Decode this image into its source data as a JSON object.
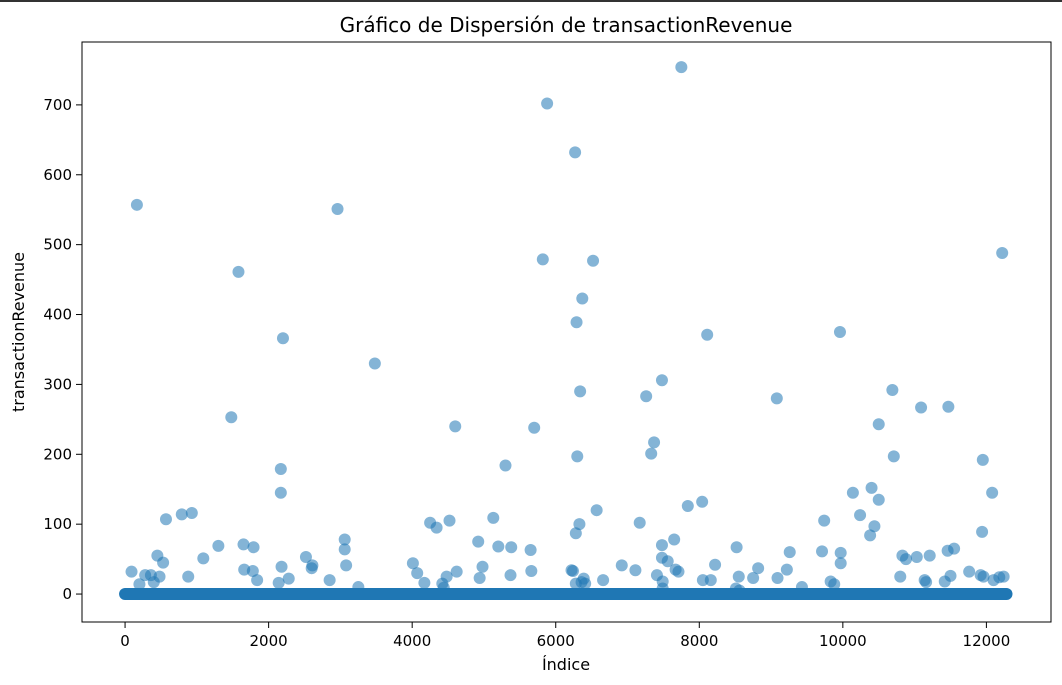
{
  "chart_data": {
    "type": "scatter",
    "title": "Gráfico de Dispersión de transactionRevenue",
    "xlabel": "Índice",
    "ylabel": "transactionRevenue",
    "xlim": [
      -600,
      12900
    ],
    "ylim": [
      -40,
      790
    ],
    "xticks": [
      0,
      2000,
      4000,
      6000,
      8000,
      10000,
      12000
    ],
    "xtick_labels": [
      "0",
      "2000",
      "4000",
      "6000",
      "8000",
      "10000",
      "12000"
    ],
    "yticks": [
      0,
      100,
      200,
      300,
      400,
      500,
      600,
      700
    ],
    "ytick_labels": [
      "0",
      "100",
      "200",
      "300",
      "400",
      "500",
      "600",
      "700"
    ],
    "grid": false,
    "legend": "none",
    "marker_color": "#1f77b4",
    "marker_alpha": 0.55,
    "baseline": {
      "x_start": 0,
      "x_end": 12280,
      "y": 0,
      "note_value": 0
    },
    "points": [
      {
        "x": 90,
        "y": 32
      },
      {
        "x": 165,
        "y": 557
      },
      {
        "x": 200,
        "y": 14
      },
      {
        "x": 280,
        "y": 27
      },
      {
        "x": 360,
        "y": 27
      },
      {
        "x": 400,
        "y": 17
      },
      {
        "x": 450,
        "y": 55
      },
      {
        "x": 480,
        "y": 25
      },
      {
        "x": 530,
        "y": 45
      },
      {
        "x": 570,
        "y": 107
      },
      {
        "x": 790,
        "y": 114
      },
      {
        "x": 880,
        "y": 25
      },
      {
        "x": 930,
        "y": 116
      },
      {
        "x": 1090,
        "y": 51
      },
      {
        "x": 1300,
        "y": 69
      },
      {
        "x": 1480,
        "y": 253
      },
      {
        "x": 1580,
        "y": 461
      },
      {
        "x": 1650,
        "y": 71
      },
      {
        "x": 1660,
        "y": 35
      },
      {
        "x": 1780,
        "y": 33
      },
      {
        "x": 1790,
        "y": 67
      },
      {
        "x": 1840,
        "y": 20
      },
      {
        "x": 2140,
        "y": 16
      },
      {
        "x": 2170,
        "y": 179
      },
      {
        "x": 2170,
        "y": 145
      },
      {
        "x": 2180,
        "y": 39
      },
      {
        "x": 2200,
        "y": 366
      },
      {
        "x": 2280,
        "y": 22
      },
      {
        "x": 2520,
        "y": 53
      },
      {
        "x": 2600,
        "y": 37
      },
      {
        "x": 2610,
        "y": 41
      },
      {
        "x": 2850,
        "y": 20
      },
      {
        "x": 2960,
        "y": 551
      },
      {
        "x": 3060,
        "y": 78
      },
      {
        "x": 3060,
        "y": 64
      },
      {
        "x": 3080,
        "y": 41
      },
      {
        "x": 3250,
        "y": 10
      },
      {
        "x": 3480,
        "y": 330
      },
      {
        "x": 4010,
        "y": 44
      },
      {
        "x": 4070,
        "y": 30
      },
      {
        "x": 4170,
        "y": 16
      },
      {
        "x": 4250,
        "y": 102
      },
      {
        "x": 4340,
        "y": 95
      },
      {
        "x": 4420,
        "y": 15
      },
      {
        "x": 4440,
        "y": 9
      },
      {
        "x": 4480,
        "y": 25
      },
      {
        "x": 4520,
        "y": 105
      },
      {
        "x": 4600,
        "y": 240
      },
      {
        "x": 4620,
        "y": 32
      },
      {
        "x": 4920,
        "y": 75
      },
      {
        "x": 4940,
        "y": 23
      },
      {
        "x": 4980,
        "y": 39
      },
      {
        "x": 5130,
        "y": 109
      },
      {
        "x": 5200,
        "y": 68
      },
      {
        "x": 5300,
        "y": 184
      },
      {
        "x": 5370,
        "y": 27
      },
      {
        "x": 5380,
        "y": 67
      },
      {
        "x": 5650,
        "y": 63
      },
      {
        "x": 5660,
        "y": 33
      },
      {
        "x": 5700,
        "y": 238
      },
      {
        "x": 5820,
        "y": 479
      },
      {
        "x": 5880,
        "y": 702
      },
      {
        "x": 6220,
        "y": 34
      },
      {
        "x": 6240,
        "y": 33
      },
      {
        "x": 6270,
        "y": 632
      },
      {
        "x": 6280,
        "y": 87
      },
      {
        "x": 6280,
        "y": 15
      },
      {
        "x": 6290,
        "y": 389
      },
      {
        "x": 6300,
        "y": 197
      },
      {
        "x": 6330,
        "y": 100
      },
      {
        "x": 6340,
        "y": 290
      },
      {
        "x": 6360,
        "y": 17
      },
      {
        "x": 6370,
        "y": 423
      },
      {
        "x": 6390,
        "y": 22
      },
      {
        "x": 6410,
        "y": 15
      },
      {
        "x": 6520,
        "y": 477
      },
      {
        "x": 6570,
        "y": 120
      },
      {
        "x": 6660,
        "y": 20
      },
      {
        "x": 6920,
        "y": 41
      },
      {
        "x": 7110,
        "y": 34
      },
      {
        "x": 7170,
        "y": 102
      },
      {
        "x": 7260,
        "y": 283
      },
      {
        "x": 7330,
        "y": 201
      },
      {
        "x": 7370,
        "y": 217
      },
      {
        "x": 7410,
        "y": 27
      },
      {
        "x": 7480,
        "y": 306
      },
      {
        "x": 7480,
        "y": 70
      },
      {
        "x": 7480,
        "y": 52
      },
      {
        "x": 7490,
        "y": 18
      },
      {
        "x": 7490,
        "y": 8
      },
      {
        "x": 7560,
        "y": 47
      },
      {
        "x": 7650,
        "y": 78
      },
      {
        "x": 7670,
        "y": 35
      },
      {
        "x": 7710,
        "y": 32
      },
      {
        "x": 7750,
        "y": 754
      },
      {
        "x": 7840,
        "y": 126
      },
      {
        "x": 8040,
        "y": 132
      },
      {
        "x": 8050,
        "y": 20
      },
      {
        "x": 8110,
        "y": 371
      },
      {
        "x": 8160,
        "y": 20
      },
      {
        "x": 8220,
        "y": 42
      },
      {
        "x": 8510,
        "y": 8
      },
      {
        "x": 8520,
        "y": 67
      },
      {
        "x": 8550,
        "y": 25
      },
      {
        "x": 8560,
        "y": 5
      },
      {
        "x": 8750,
        "y": 23
      },
      {
        "x": 8820,
        "y": 37
      },
      {
        "x": 9080,
        "y": 280
      },
      {
        "x": 9090,
        "y": 23
      },
      {
        "x": 9220,
        "y": 35
      },
      {
        "x": 9260,
        "y": 60
      },
      {
        "x": 9430,
        "y": 10
      },
      {
        "x": 9710,
        "y": 61
      },
      {
        "x": 9740,
        "y": 105
      },
      {
        "x": 9830,
        "y": 18
      },
      {
        "x": 9880,
        "y": 14
      },
      {
        "x": 9960,
        "y": 375
      },
      {
        "x": 9970,
        "y": 59
      },
      {
        "x": 9970,
        "y": 44
      },
      {
        "x": 10140,
        "y": 145
      },
      {
        "x": 10240,
        "y": 113
      },
      {
        "x": 10380,
        "y": 84
      },
      {
        "x": 10400,
        "y": 152
      },
      {
        "x": 10440,
        "y": 97
      },
      {
        "x": 10500,
        "y": 243
      },
      {
        "x": 10500,
        "y": 135
      },
      {
        "x": 10690,
        "y": 292
      },
      {
        "x": 10710,
        "y": 197
      },
      {
        "x": 10800,
        "y": 25
      },
      {
        "x": 10830,
        "y": 55
      },
      {
        "x": 10880,
        "y": 50
      },
      {
        "x": 11030,
        "y": 53
      },
      {
        "x": 11090,
        "y": 267
      },
      {
        "x": 11140,
        "y": 20
      },
      {
        "x": 11160,
        "y": 17
      },
      {
        "x": 11210,
        "y": 55
      },
      {
        "x": 11420,
        "y": 18
      },
      {
        "x": 11460,
        "y": 62
      },
      {
        "x": 11470,
        "y": 268
      },
      {
        "x": 11500,
        "y": 26
      },
      {
        "x": 11550,
        "y": 65
      },
      {
        "x": 11760,
        "y": 32
      },
      {
        "x": 11920,
        "y": 27
      },
      {
        "x": 11940,
        "y": 89
      },
      {
        "x": 11950,
        "y": 192
      },
      {
        "x": 11960,
        "y": 25
      },
      {
        "x": 12080,
        "y": 145
      },
      {
        "x": 12100,
        "y": 20
      },
      {
        "x": 12180,
        "y": 24
      },
      {
        "x": 12220,
        "y": 488
      },
      {
        "x": 12240,
        "y": 25
      }
    ]
  }
}
